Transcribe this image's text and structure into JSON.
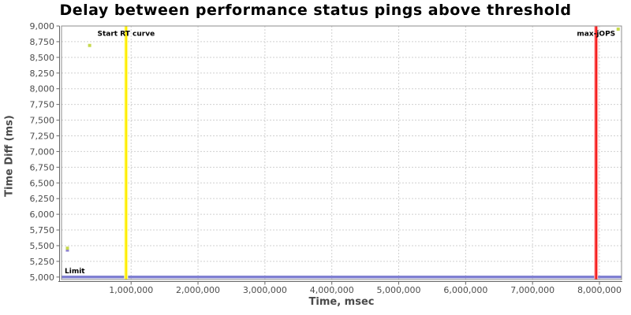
{
  "chart_data": {
    "type": "scatter",
    "title": "Delay between performance status pings above threshold",
    "xlabel": "Time, msec",
    "ylabel": "Time Diff (ms)",
    "xlim": [
      -40000,
      8330000
    ],
    "ylim": [
      4960,
      9000
    ],
    "x_ticks": [
      1000000,
      2000000,
      3000000,
      4000000,
      5000000,
      6000000,
      7000000,
      8000000
    ],
    "y_ticks": [
      5000,
      5250,
      5500,
      5750,
      6000,
      6250,
      6500,
      6750,
      7000,
      7250,
      7500,
      7750,
      8000,
      8250,
      8500,
      8750,
      9000
    ],
    "grid": true,
    "legend_position": "none",
    "series": [
      {
        "marker": "square",
        "color": "#8a7fd0",
        "points": [
          [
            48000,
            5430
          ]
        ]
      },
      {
        "marker": "square",
        "color": "#c6d94e",
        "points": [
          [
            48000,
            5460
          ],
          [
            380000,
            8690
          ],
          [
            8280000,
            8950
          ]
        ]
      }
    ],
    "markers": [
      {
        "type": "hline",
        "y": 5000,
        "label": "Limit",
        "color": "#8080d2"
      },
      {
        "type": "vline",
        "x": 925000,
        "label": "Start RT curve",
        "color": "#ffed00",
        "halo": "#ffffa8"
      },
      {
        "type": "vline",
        "x": 7950000,
        "label": "max-jOPS",
        "color": "#f52020",
        "halo": "#ffabab"
      }
    ],
    "colors": {
      "background": "#ffffff",
      "grid": "#d0d0d0",
      "border": "#8c8c8c",
      "axis_line": "#666666",
      "tick_label": "#4d4d4d",
      "marker_label": "#000000",
      "title": "#000000",
      "axis_title": "#4a4a4a"
    }
  }
}
